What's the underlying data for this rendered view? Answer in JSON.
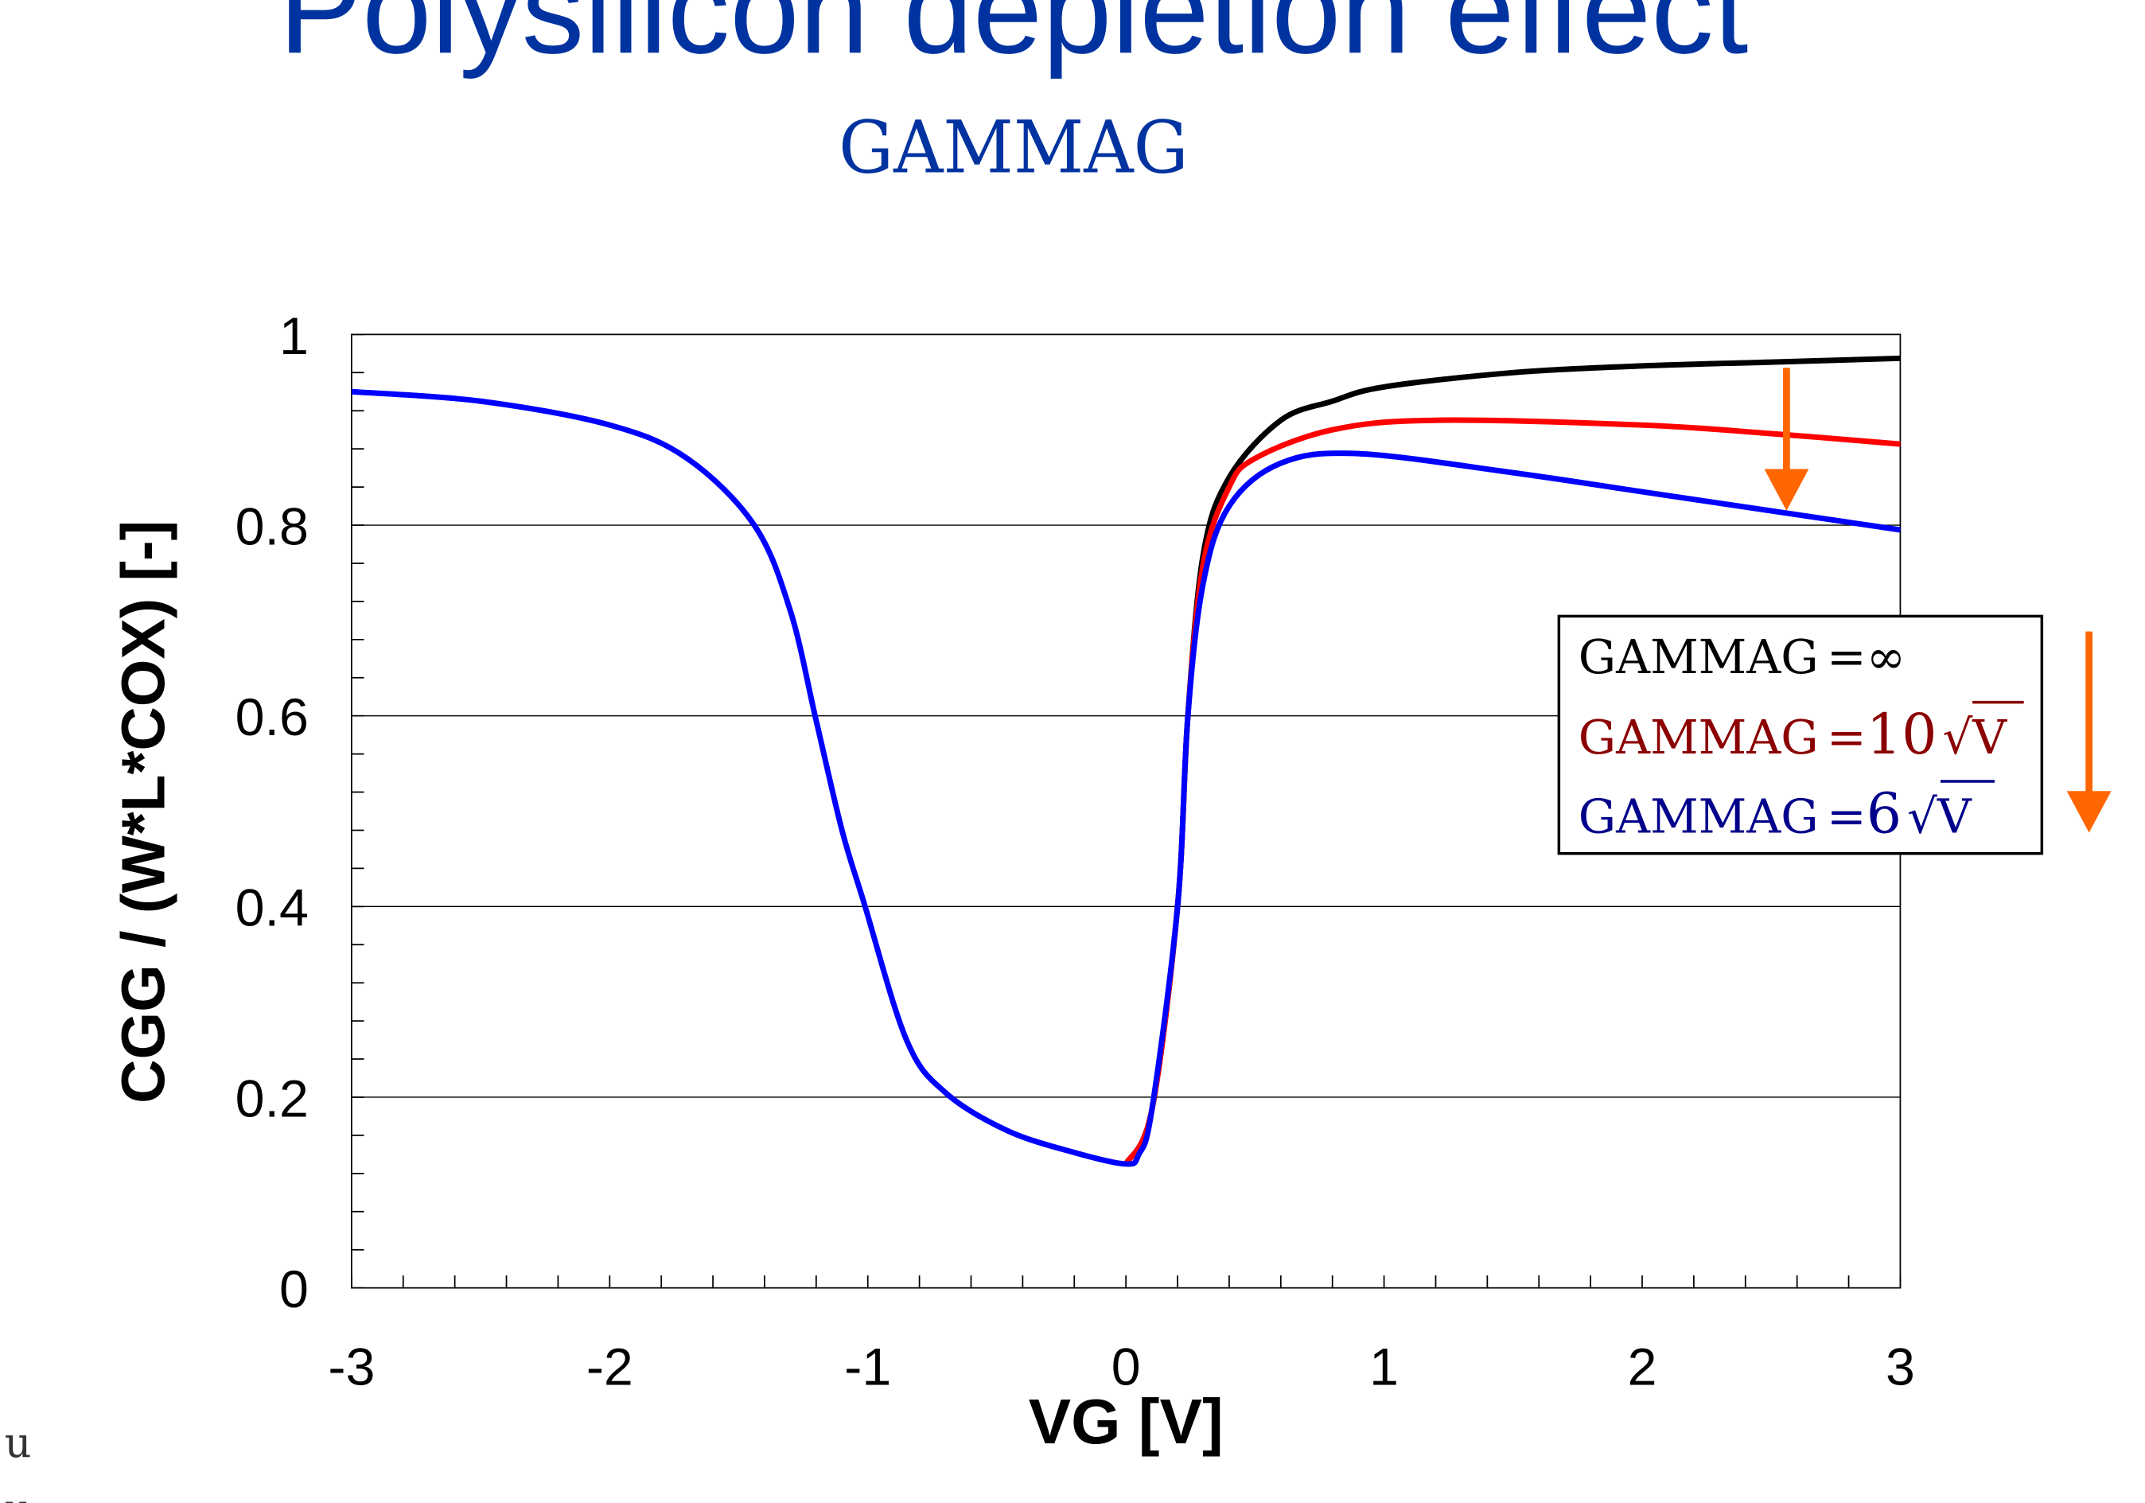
{
  "title": "Polysilicon depletion effect",
  "subtitle": "GAMMAG",
  "side_marks": [
    "u",
    "u"
  ],
  "colors": {
    "title": "#0033a0",
    "black": "#000000",
    "red": "#ff0000",
    "blue": "#0000ff",
    "arrow": "#ff6600",
    "legend_red": "#8b0000",
    "legend_blue": "#00008b"
  },
  "chart_data": {
    "type": "line",
    "title": "Polysilicon depletion effect",
    "xlabel": "VG [V]",
    "ylabel": "CGG / (W*L*COX) [-]",
    "xlim": [
      -3,
      3
    ],
    "ylim": [
      0,
      1
    ],
    "xticks": [
      "-3",
      "-2",
      "-1",
      "0",
      "1",
      "2",
      "3"
    ],
    "yticks": [
      "0",
      "0.2",
      "0.4",
      "0.6",
      "0.8",
      "1"
    ],
    "grid": "horizontal",
    "legend_position": "right",
    "legend": [
      {
        "prefix": "GAMMAG",
        "eq": "=",
        "value": "∞",
        "sqrt": ""
      },
      {
        "prefix": "GAMMAG",
        "eq": "=",
        "value": "10",
        "sqrt": "V"
      },
      {
        "prefix": "GAMMAG",
        "eq": "=",
        "value": "6",
        "sqrt": "V"
      }
    ],
    "series": [
      {
        "name": "GAMMAG=∞",
        "color": "#000000",
        "x": [
          0.0,
          0.1,
          0.2,
          0.24,
          0.3,
          0.4,
          0.6,
          0.8,
          1.0,
          1.5,
          2.0,
          2.5,
          3.0
        ],
        "y": [
          0.13,
          0.186,
          0.4,
          0.6,
          0.77,
          0.85,
          0.91,
          0.93,
          0.945,
          0.96,
          0.967,
          0.971,
          0.975
        ]
      },
      {
        "name": "GAMMAG=10√V",
        "color": "#ff0000",
        "x": [
          0.0,
          0.1,
          0.2,
          0.24,
          0.3,
          0.4,
          0.5,
          0.8,
          1.2,
          2.0,
          2.5,
          3.0
        ],
        "y": [
          0.13,
          0.186,
          0.4,
          0.6,
          0.76,
          0.84,
          0.87,
          0.9,
          0.91,
          0.905,
          0.896,
          0.885
        ]
      },
      {
        "name": "GAMMAG=6√V",
        "color": "#0000ff",
        "x": [
          -3,
          -2.5,
          -2,
          -1.7,
          -1.44,
          -1.3,
          -1.2,
          -1.1,
          -1.016,
          -0.85,
          -0.7,
          -0.46,
          -0.2,
          0.0,
          0.05,
          0.1,
          0.2,
          0.24,
          0.3,
          0.4,
          0.6,
          0.9,
          1.5,
          2.0,
          2.5,
          3.0
        ],
        "y": [
          0.94,
          0.93,
          0.905,
          0.87,
          0.8,
          0.71,
          0.595,
          0.48,
          0.405,
          0.26,
          0.205,
          0.165,
          0.142,
          0.13,
          0.14,
          0.186,
          0.4,
          0.6,
          0.74,
          0.82,
          0.865,
          0.875,
          0.855,
          0.835,
          0.815,
          0.795
        ]
      }
    ],
    "annotations": [
      "arrow-down (decreasing GAMMAG)",
      "arrow-down (legend)"
    ]
  }
}
